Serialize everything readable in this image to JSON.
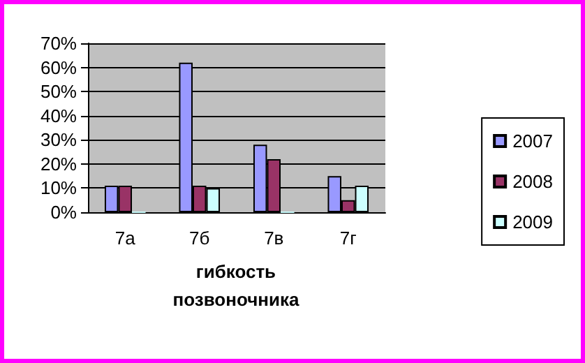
{
  "chart_data": {
    "type": "bar",
    "xlabel": "гибкость позвоночника",
    "categories": [
      "7а",
      "7б",
      "7в",
      "7г"
    ],
    "series": [
      {
        "name": "2007",
        "color": "#9999ff",
        "values": [
          11,
          62,
          28,
          15
        ]
      },
      {
        "name": "2008",
        "color": "#993366",
        "values": [
          11,
          11,
          22,
          5
        ]
      },
      {
        "name": "2009",
        "color": "#ccffff",
        "values": [
          0,
          10,
          0,
          11
        ]
      }
    ],
    "ylim": [
      0,
      70
    ],
    "yticks": [
      {
        "value": 0,
        "label": "0%"
      },
      {
        "value": 10,
        "label": "10%"
      },
      {
        "value": 20,
        "label": "20%"
      },
      {
        "value": 30,
        "label": "30%"
      },
      {
        "value": 40,
        "label": "40%"
      },
      {
        "value": 50,
        "label": "50%"
      },
      {
        "value": 60,
        "label": "60%"
      },
      {
        "value": 70,
        "label": "70%"
      }
    ],
    "grid": true,
    "legend": "right"
  }
}
